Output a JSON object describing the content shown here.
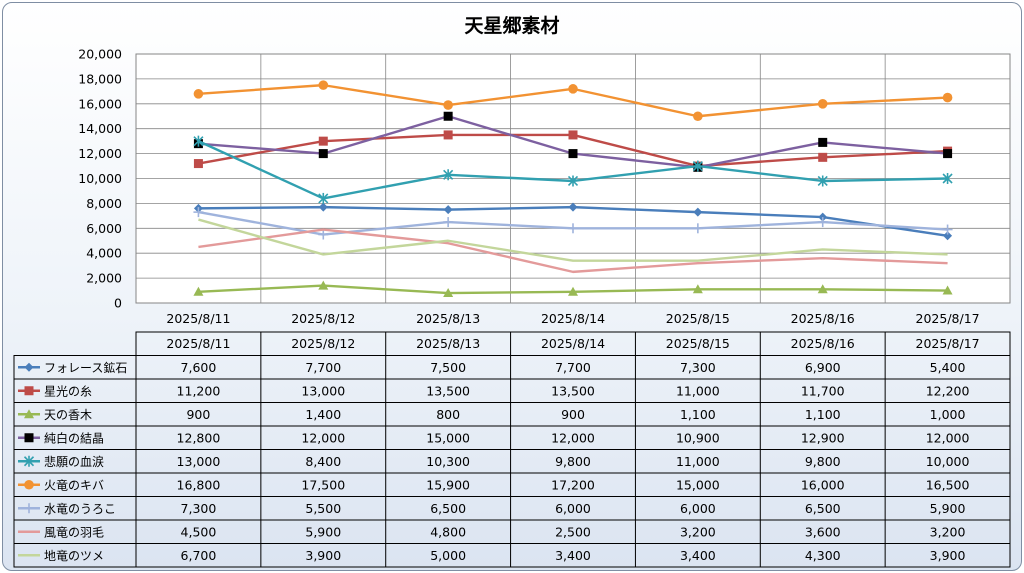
{
  "chart_data": {
    "type": "line",
    "title": "天星郷素材",
    "categories": [
      "2025/8/11",
      "2025/8/12",
      "2025/8/13",
      "2025/8/14",
      "2025/8/15",
      "2025/8/16",
      "2025/8/17"
    ],
    "ylim": [
      0,
      20000
    ],
    "yticks": [
      0,
      2000,
      4000,
      6000,
      8000,
      10000,
      12000,
      14000,
      16000,
      18000,
      20000
    ],
    "ytick_labels": [
      "0",
      "2,000",
      "4,000",
      "6,000",
      "8,000",
      "10,000",
      "12,000",
      "14,000",
      "16,000",
      "18,000",
      "20,000"
    ],
    "grid": true,
    "legend": "data-table",
    "series": [
      {
        "name": "フォレース鉱石",
        "color": "#4a7ebb",
        "marker": "diamond",
        "values": [
          7600,
          7700,
          7500,
          7700,
          7300,
          6900,
          5400
        ],
        "labels": [
          "7,600",
          "7,700",
          "7,500",
          "7,700",
          "7,300",
          "6,900",
          "5,400"
        ]
      },
      {
        "name": "星光の糸",
        "color": "#be4b48",
        "marker": "square",
        "values": [
          11200,
          13000,
          13500,
          13500,
          11000,
          11700,
          12200
        ],
        "labels": [
          "11,200",
          "13,000",
          "13,500",
          "13,500",
          "11,000",
          "11,700",
          "12,200"
        ]
      },
      {
        "name": "天の香木",
        "color": "#98b954",
        "marker": "triangle",
        "values": [
          900,
          1400,
          800,
          900,
          1100,
          1100,
          1000
        ],
        "labels": [
          "900",
          "1,400",
          "800",
          "900",
          "1,100",
          "1,100",
          "1,000"
        ]
      },
      {
        "name": "純白の結晶",
        "color": "#7d60a0",
        "marker": "xsquare",
        "values": [
          12800,
          12000,
          15000,
          12000,
          10900,
          12900,
          12000
        ],
        "labels": [
          "12,800",
          "12,000",
          "15,000",
          "12,000",
          "10,900",
          "12,900",
          "12,000"
        ]
      },
      {
        "name": "悲願の血涙",
        "color": "#31a0b0",
        "marker": "star",
        "values": [
          13000,
          8400,
          10300,
          9800,
          11000,
          9800,
          10000
        ],
        "labels": [
          "13,000",
          "8,400",
          "10,300",
          "9,800",
          "11,000",
          "9,800",
          "10,000"
        ]
      },
      {
        "name": "火竜のキバ",
        "color": "#f29232",
        "marker": "circle",
        "values": [
          16800,
          17500,
          15900,
          17200,
          15000,
          16000,
          16500
        ],
        "labels": [
          "16,800",
          "17,500",
          "15,900",
          "17,200",
          "15,000",
          "16,000",
          "16,500"
        ]
      },
      {
        "name": "水竜のうろこ",
        "color": "#9fb3dc",
        "marker": "plus",
        "values": [
          7300,
          5500,
          6500,
          6000,
          6000,
          6500,
          5900
        ],
        "labels": [
          "7,300",
          "5,500",
          "6,500",
          "6,000",
          "6,000",
          "6,500",
          "5,900"
        ]
      },
      {
        "name": "風竜の羽毛",
        "color": "#e39a9a",
        "marker": "none",
        "values": [
          4500,
          5900,
          4800,
          2500,
          3200,
          3600,
          3200
        ],
        "labels": [
          "4,500",
          "5,900",
          "4,800",
          "2,500",
          "3,200",
          "3,600",
          "3,200"
        ]
      },
      {
        "name": "地竜のツメ",
        "color": "#c3d69b",
        "marker": "none",
        "values": [
          6700,
          3900,
          5000,
          3400,
          3400,
          4300,
          3900
        ],
        "labels": [
          "6,700",
          "3,900",
          "5,000",
          "3,400",
          "3,400",
          "4,300",
          "3,900"
        ]
      }
    ]
  }
}
